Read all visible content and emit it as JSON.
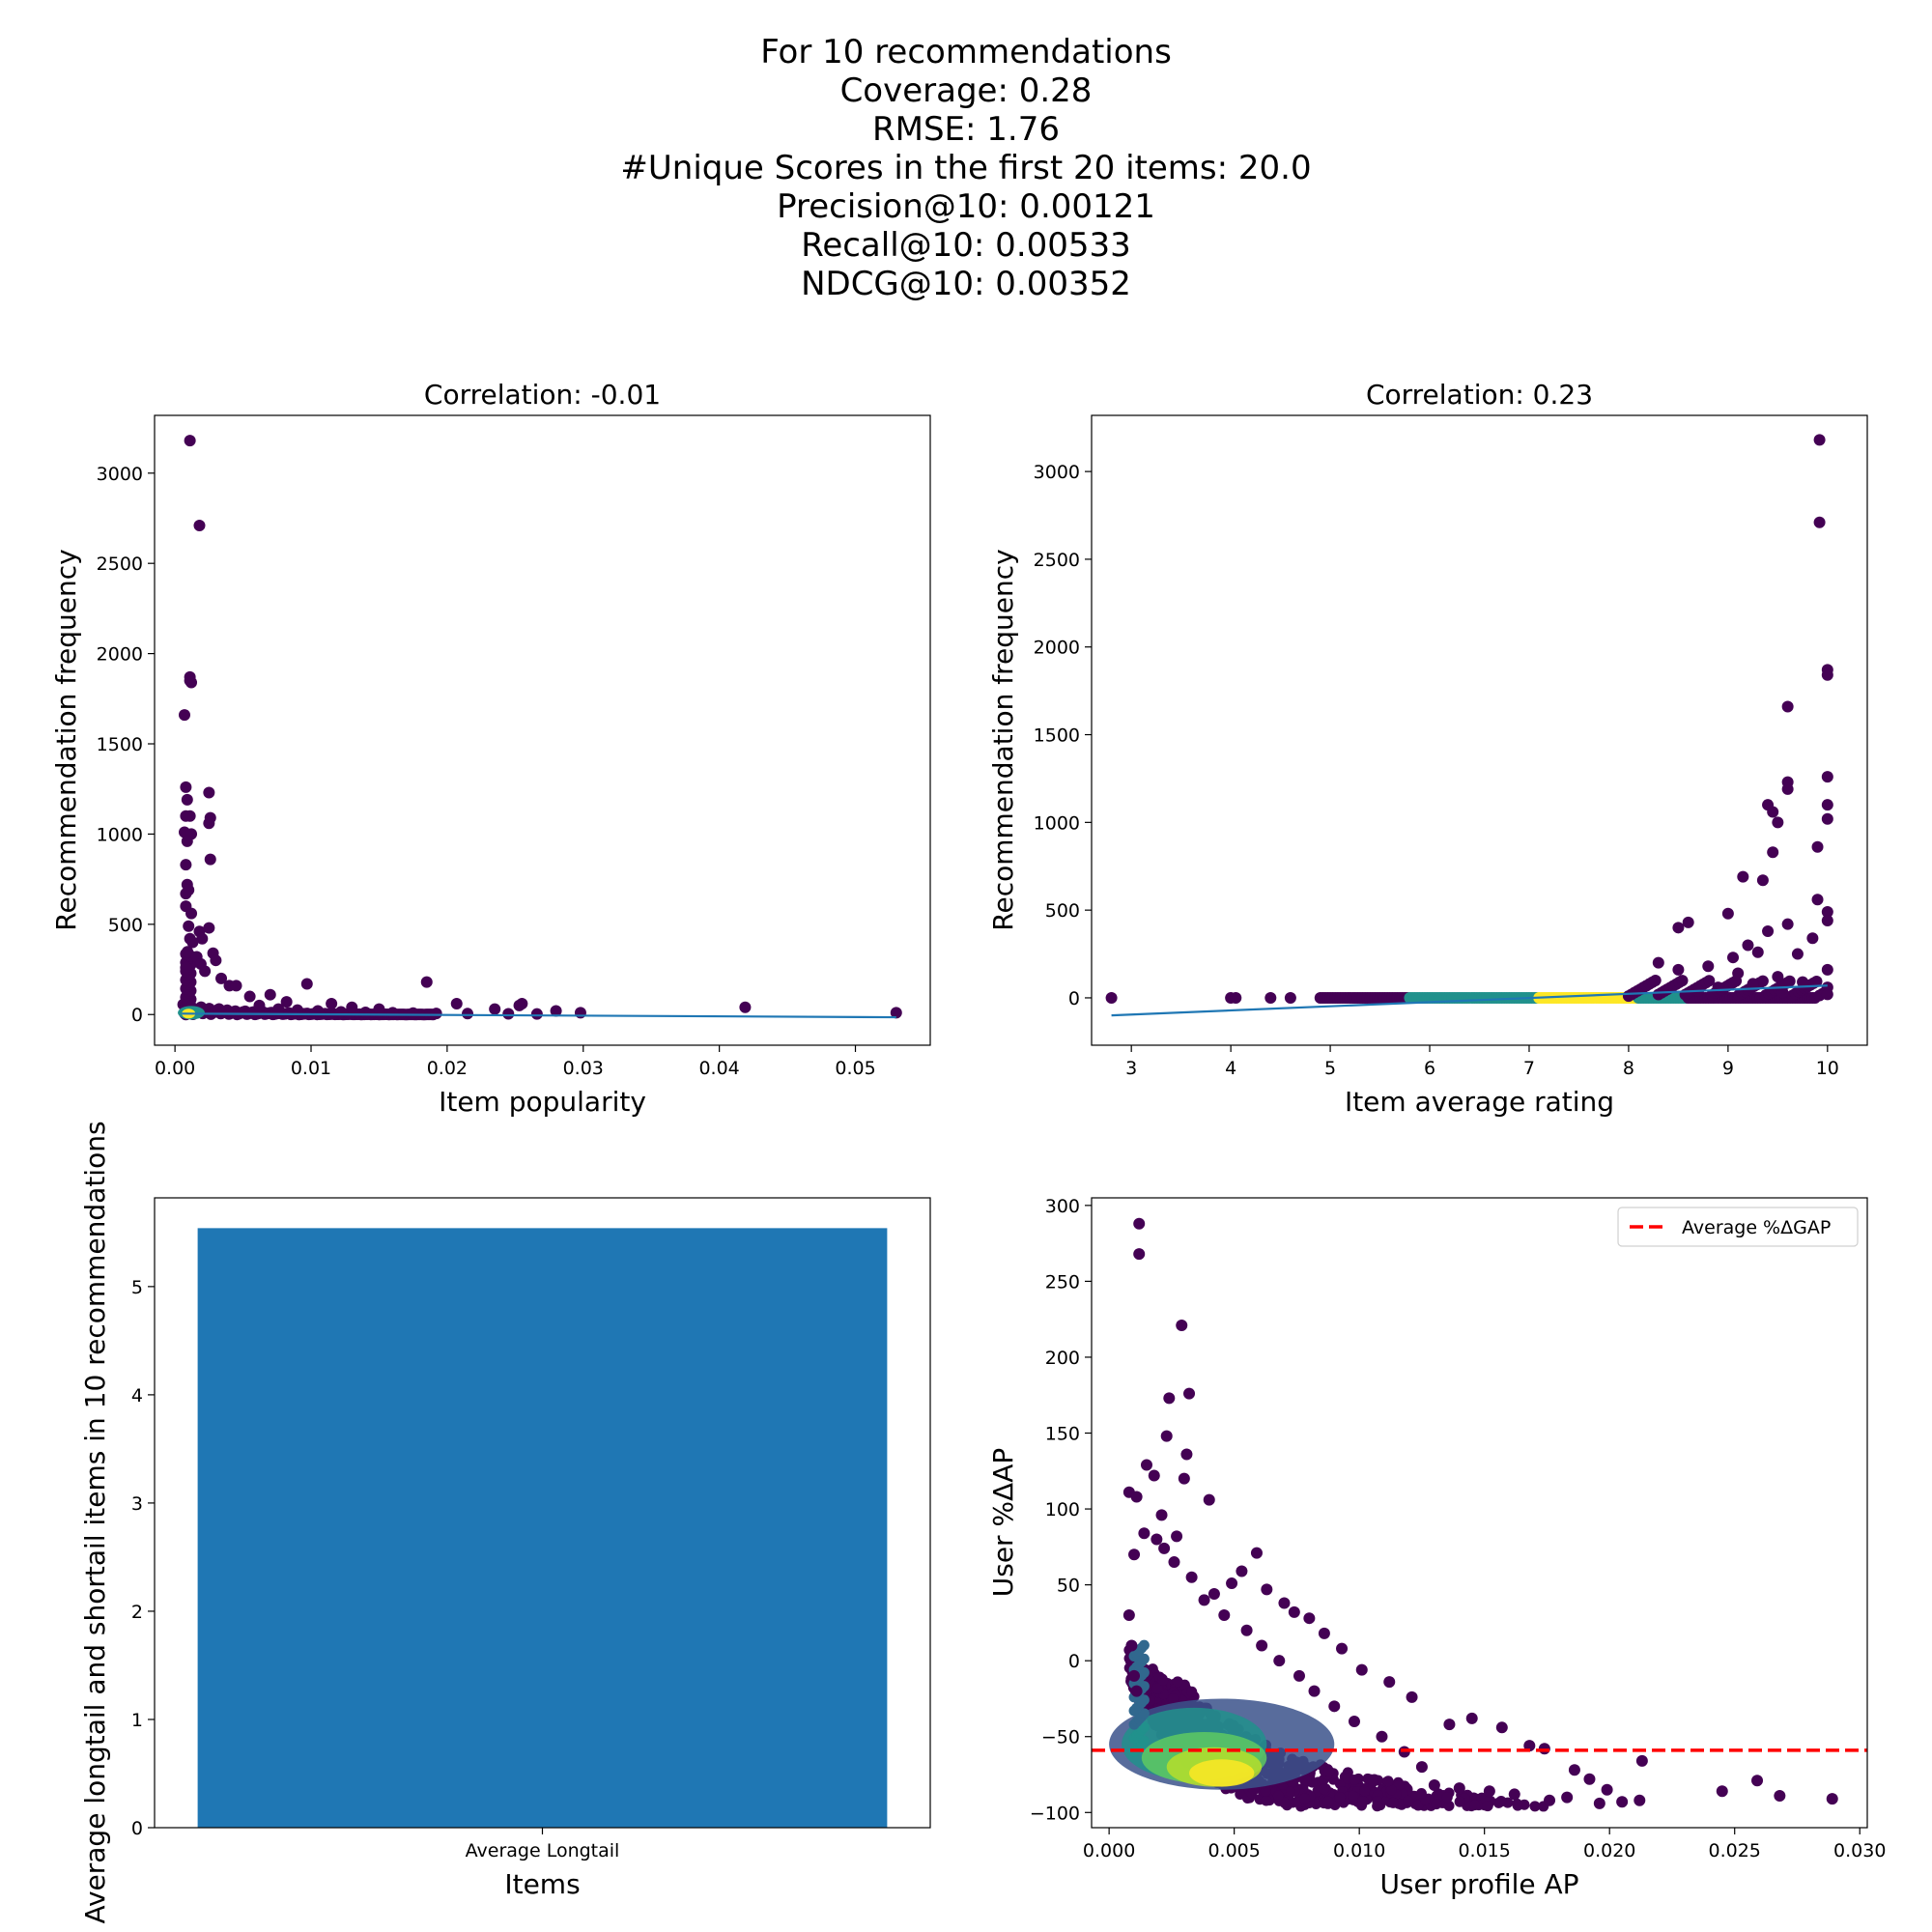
{
  "suptitle_lines": [
    "For 10 recommendations",
    "Coverage: 0.28",
    "RMSE: 1.76",
    "#Unique Scores in the first 20 items: 20.0",
    "Precision@10: 0.00121",
    "Recall@10: 0.00533",
    "NDCG@10: 0.00352"
  ],
  "colors": {
    "viridis_low": "#440154",
    "viridis_mid": "#21918c",
    "viridis_high": "#fde725",
    "fit_line": "#1f77b4",
    "bar": "#1f77b4",
    "avg_line": "#ff0000"
  },
  "chart_data": [
    {
      "id": "popularity",
      "type": "scatter",
      "title": "Correlation: -0.01",
      "xlabel": "Item popularity",
      "ylabel": "Recommendation frequency",
      "xlim": [
        -0.0015,
        0.0555
      ],
      "ylim": [
        -170,
        3320
      ],
      "xticks": [
        0.0,
        0.01,
        0.02,
        0.03,
        0.04,
        0.05
      ],
      "xtick_labels": [
        "0.00",
        "0.01",
        "0.02",
        "0.03",
        "0.04",
        "0.05"
      ],
      "yticks": [
        0,
        500,
        1000,
        1500,
        2000,
        2500,
        3000
      ],
      "ytick_labels": [
        "0",
        "500",
        "1000",
        "1500",
        "2000",
        "2500",
        "3000"
      ],
      "fit_line": {
        "x": [
          0.0005,
          0.053
        ],
        "y": [
          5,
          -15
        ]
      },
      "points": [
        [
          0.0011,
          3180
        ],
        [
          0.0018,
          2710
        ],
        [
          0.0011,
          1870
        ],
        [
          0.0011,
          1850
        ],
        [
          0.0012,
          1840
        ],
        [
          0.0007,
          1660
        ],
        [
          0.0008,
          1260
        ],
        [
          0.0025,
          1230
        ],
        [
          0.0009,
          1190
        ],
        [
          0.0011,
          1100
        ],
        [
          0.0026,
          1090
        ],
        [
          0.0025,
          1060
        ],
        [
          0.0008,
          1100
        ],
        [
          0.0007,
          1010
        ],
        [
          0.0012,
          1000
        ],
        [
          0.0009,
          960
        ],
        [
          0.0026,
          860
        ],
        [
          0.0008,
          830
        ],
        [
          0.0009,
          720
        ],
        [
          0.001,
          690
        ],
        [
          0.0008,
          670
        ],
        [
          0.0008,
          600
        ],
        [
          0.0012,
          560
        ],
        [
          0.001,
          490
        ],
        [
          0.0025,
          480
        ],
        [
          0.0018,
          460
        ],
        [
          0.002,
          420
        ],
        [
          0.0011,
          420
        ],
        [
          0.0013,
          400
        ],
        [
          0.0028,
          340
        ],
        [
          0.003,
          300
        ],
        [
          0.0016,
          320
        ],
        [
          0.0019,
          280
        ],
        [
          0.0008,
          260
        ],
        [
          0.0022,
          240
        ],
        [
          0.0034,
          200
        ],
        [
          0.004,
          160
        ],
        [
          0.0045,
          160
        ],
        [
          0.0055,
          100
        ],
        [
          0.007,
          110
        ],
        [
          0.0082,
          70
        ],
        [
          0.0097,
          170
        ],
        [
          0.0185,
          180
        ],
        [
          0.0115,
          60
        ],
        [
          0.013,
          40
        ],
        [
          0.015,
          30
        ],
        [
          0.0207,
          60
        ],
        [
          0.0235,
          30
        ],
        [
          0.0255,
          60
        ],
        [
          0.0253,
          50
        ],
        [
          0.028,
          20
        ],
        [
          0.0298,
          10
        ],
        [
          0.0419,
          40
        ],
        [
          0.053,
          10
        ],
        [
          0.0062,
          50
        ],
        [
          0.0076,
          30
        ],
        [
          0.009,
          25
        ],
        [
          0.0105,
          20
        ],
        [
          0.0122,
          15
        ],
        [
          0.014,
          12
        ],
        [
          0.016,
          10
        ],
        [
          0.0175,
          8
        ],
        [
          0.0192,
          6
        ],
        [
          0.0215,
          5
        ],
        [
          0.0245,
          4
        ],
        [
          0.0266,
          3
        ]
      ]
    },
    {
      "id": "avg_rating",
      "type": "scatter",
      "title": "Correlation: 0.23",
      "xlabel": "Item average rating",
      "ylabel": "Recommendation frequency",
      "xlim": [
        2.6,
        10.4
      ],
      "ylim": [
        -270,
        3320
      ],
      "xticks": [
        3,
        4,
        5,
        6,
        7,
        8,
        9,
        10
      ],
      "xtick_labels": [
        "3",
        "4",
        "5",
        "6",
        "7",
        "8",
        "9",
        "10"
      ],
      "yticks": [
        0,
        500,
        1000,
        1500,
        2000,
        2500,
        3000
      ],
      "ytick_labels": [
        "0",
        "500",
        "1000",
        "1500",
        "2000",
        "2500",
        "3000"
      ],
      "fit_line": {
        "x": [
          2.8,
          10.0
        ],
        "y": [
          -100,
          70
        ]
      },
      "points": [
        [
          9.92,
          3180
        ],
        [
          9.92,
          2710
        ],
        [
          10.0,
          1870
        ],
        [
          10.0,
          1840
        ],
        [
          9.6,
          1660
        ],
        [
          10.0,
          1260
        ],
        [
          9.6,
          1230
        ],
        [
          9.6,
          1190
        ],
        [
          9.4,
          1100
        ],
        [
          10.0,
          1100
        ],
        [
          9.45,
          1060
        ],
        [
          9.5,
          1000
        ],
        [
          10.0,
          1020
        ],
        [
          9.9,
          860
        ],
        [
          9.45,
          830
        ],
        [
          9.15,
          690
        ],
        [
          9.35,
          670
        ],
        [
          9.9,
          560
        ],
        [
          9.0,
          480
        ],
        [
          8.6,
          430
        ],
        [
          8.5,
          400
        ],
        [
          10.0,
          490
        ],
        [
          10.0,
          440
        ],
        [
          9.6,
          420
        ],
        [
          9.4,
          380
        ],
        [
          9.85,
          340
        ],
        [
          9.2,
          300
        ],
        [
          8.3,
          200
        ],
        [
          8.5,
          160
        ],
        [
          2.8,
          0
        ],
        [
          4.0,
          0
        ],
        [
          4.05,
          0
        ],
        [
          4.4,
          0
        ],
        [
          4.6,
          0
        ],
        [
          9.3,
          260
        ],
        [
          9.7,
          250
        ],
        [
          9.05,
          230
        ],
        [
          8.8,
          180
        ],
        [
          9.1,
          140
        ],
        [
          9.5,
          120
        ],
        [
          10.0,
          160
        ],
        [
          10.0,
          60
        ],
        [
          9.75,
          90
        ],
        [
          9.25,
          80
        ],
        [
          8.9,
          60
        ],
        [
          8.7,
          40
        ],
        [
          9.55,
          30
        ],
        [
          10.0,
          20
        ]
      ]
    },
    {
      "id": "longtail",
      "type": "bar",
      "title": "",
      "xlabel": "Items",
      "ylabel": "Average longtail and shortail items in 10 recommendations",
      "categories": [
        "Average Longtail"
      ],
      "values": [
        5.54
      ],
      "xlim": [
        -0.45,
        0.45
      ],
      "ylim": [
        0,
        5.82
      ],
      "yticks": [
        0,
        1,
        2,
        3,
        4,
        5
      ],
      "ytick_labels": [
        "0",
        "1",
        "2",
        "3",
        "4",
        "5"
      ],
      "bar_width": 0.8
    },
    {
      "id": "user_ap",
      "type": "scatter",
      "title": "",
      "xlabel": "User profile AP",
      "ylabel": "User %ΔAP",
      "xlim": [
        -0.0007,
        0.0303
      ],
      "ylim": [
        -110,
        305
      ],
      "xticks": [
        0.0,
        0.005,
        0.01,
        0.015,
        0.02,
        0.025,
        0.03
      ],
      "xtick_labels": [
        "0.000",
        "0.005",
        "0.010",
        "0.015",
        "0.020",
        "0.025",
        "0.030"
      ],
      "yticks": [
        -100,
        -50,
        0,
        50,
        100,
        150,
        200,
        250,
        300
      ],
      "ytick_labels": [
        "−100",
        "−50",
        "0",
        "50",
        "100",
        "150",
        "200",
        "250",
        "300"
      ],
      "avg_line_y": -59,
      "legend": {
        "label": "Average %ΔGAP",
        "loc": "upper right"
      },
      "points": [
        [
          0.0012,
          288
        ],
        [
          0.0012,
          268
        ],
        [
          0.0029,
          221
        ],
        [
          0.0032,
          176
        ],
        [
          0.0024,
          173
        ],
        [
          0.0023,
          148
        ],
        [
          0.0031,
          136
        ],
        [
          0.0015,
          129
        ],
        [
          0.0018,
          122
        ],
        [
          0.003,
          120
        ],
        [
          0.0008,
          111
        ],
        [
          0.0011,
          108
        ],
        [
          0.004,
          106
        ],
        [
          0.0021,
          96
        ],
        [
          0.0014,
          84
        ],
        [
          0.0027,
          82
        ],
        [
          0.0022,
          74
        ],
        [
          0.0059,
          71
        ],
        [
          0.0053,
          59
        ],
        [
          0.0049,
          51
        ],
        [
          0.0063,
          47
        ],
        [
          0.0042,
          44
        ],
        [
          0.007,
          38
        ],
        [
          0.0074,
          32
        ],
        [
          0.008,
          28
        ],
        [
          0.0086,
          18
        ],
        [
          0.0093,
          8
        ],
        [
          0.0101,
          -6
        ],
        [
          0.0112,
          -14
        ],
        [
          0.0121,
          -24
        ],
        [
          0.0136,
          -42
        ],
        [
          0.0145,
          -38
        ],
        [
          0.0157,
          -44
        ],
        [
          0.0168,
          -56
        ],
        [
          0.0174,
          -58
        ],
        [
          0.0186,
          -72
        ],
        [
          0.0192,
          -78
        ],
        [
          0.0199,
          -85
        ],
        [
          0.0213,
          -66
        ],
        [
          0.0212,
          -92
        ],
        [
          0.0245,
          -86
        ],
        [
          0.0259,
          -79
        ],
        [
          0.0268,
          -89
        ],
        [
          0.0289,
          -91
        ],
        [
          0.0205,
          -93
        ],
        [
          0.0196,
          -94
        ],
        [
          0.0183,
          -90
        ],
        [
          0.0176,
          -92
        ],
        [
          0.0162,
          -88
        ],
        [
          0.0152,
          -86
        ],
        [
          0.014,
          -84
        ],
        [
          0.013,
          -82
        ],
        [
          0.0125,
          -70
        ],
        [
          0.0118,
          -60
        ],
        [
          0.0109,
          -50
        ],
        [
          0.0098,
          -40
        ],
        [
          0.009,
          -30
        ],
        [
          0.0082,
          -20
        ],
        [
          0.0076,
          -10
        ],
        [
          0.0068,
          0
        ],
        [
          0.0061,
          10
        ],
        [
          0.0055,
          20
        ],
        [
          0.0046,
          30
        ],
        [
          0.0038,
          40
        ],
        [
          0.0033,
          55
        ],
        [
          0.0026,
          65
        ],
        [
          0.0019,
          80
        ],
        [
          0.001,
          70
        ],
        [
          0.0008,
          30
        ],
        [
          0.0009,
          10
        ],
        [
          0.001,
          -10
        ],
        [
          0.0011,
          -20
        ]
      ],
      "density_cloud": {
        "core": [
          0.0045,
          -75
        ],
        "bands": [
          {
            "color": "#fde725",
            "cx": 0.0045,
            "cy": -74,
            "rx": 0.0013,
            "ry": 9
          },
          {
            "color": "#b5de2b",
            "cx": 0.0042,
            "cy": -70,
            "rx": 0.0019,
            "ry": 13
          },
          {
            "color": "#5ec962",
            "cx": 0.0038,
            "cy": -64,
            "rx": 0.0025,
            "ry": 17
          },
          {
            "color": "#21918c",
            "cx": 0.0034,
            "cy": -55,
            "rx": 0.0029,
            "ry": 24
          },
          {
            "color": "#3b528b",
            "cx": 0.0045,
            "cy": -55,
            "rx": 0.0045,
            "ry": 30
          }
        ]
      }
    }
  ]
}
